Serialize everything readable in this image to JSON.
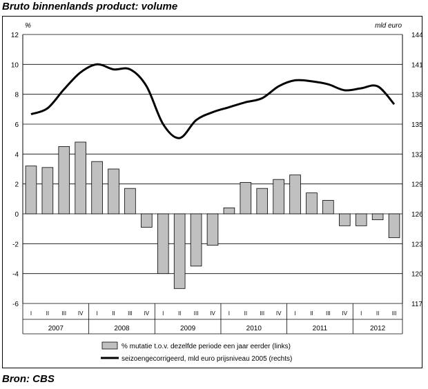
{
  "title": "Bruto binnenlands product: volume",
  "source": "Bron: CBS",
  "chart_data": {
    "type": "bar+line",
    "left_axis": {
      "unit_label": "%",
      "range": [
        -6,
        12
      ],
      "ticks": [
        "12",
        "10",
        "8",
        "6",
        "4",
        "2",
        "0",
        "-2",
        "-4",
        "-6"
      ]
    },
    "right_axis": {
      "unit_label": "mld euro",
      "range": [
        117,
        144
      ],
      "ticks": [
        "144",
        "141",
        "138",
        "135",
        "132",
        "129",
        "126",
        "123",
        "120",
        "117"
      ]
    },
    "quarters": [
      "I",
      "II",
      "III",
      "IV",
      "I",
      "II",
      "III",
      "IV",
      "I",
      "II",
      "III",
      "IV",
      "I",
      "II",
      "III",
      "IV",
      "I",
      "II",
      "III",
      "IV",
      "I",
      "II",
      "III"
    ],
    "years": [
      "2007",
      "2008",
      "2009",
      "2010",
      "2011",
      "2012"
    ],
    "series": [
      {
        "name": "% mutatie t.o.v. dezelfde periode een jaar eerder (links)",
        "type": "bar",
        "axis": "left",
        "color": "#c0c0c0",
        "values": [
          3.2,
          3.1,
          4.5,
          4.8,
          3.5,
          3.0,
          1.7,
          -0.9,
          -4.0,
          -5.0,
          -3.5,
          -2.1,
          0.4,
          2.1,
          1.7,
          2.3,
          2.6,
          1.4,
          0.9,
          -0.8,
          -0.8,
          -0.4,
          -1.6
        ]
      },
      {
        "name": "seizoengecorrigeerd, mld euro prijsniveau 2005 (rechts)",
        "type": "line",
        "axis": "right",
        "color": "#000000",
        "values": [
          136.0,
          136.6,
          138.5,
          140.2,
          141.0,
          140.5,
          140.5,
          138.8,
          135.0,
          133.6,
          135.4,
          136.2,
          136.7,
          137.2,
          137.6,
          138.8,
          139.4,
          139.3,
          139.0,
          138.4,
          138.6,
          138.8,
          137.0
        ]
      }
    ]
  }
}
